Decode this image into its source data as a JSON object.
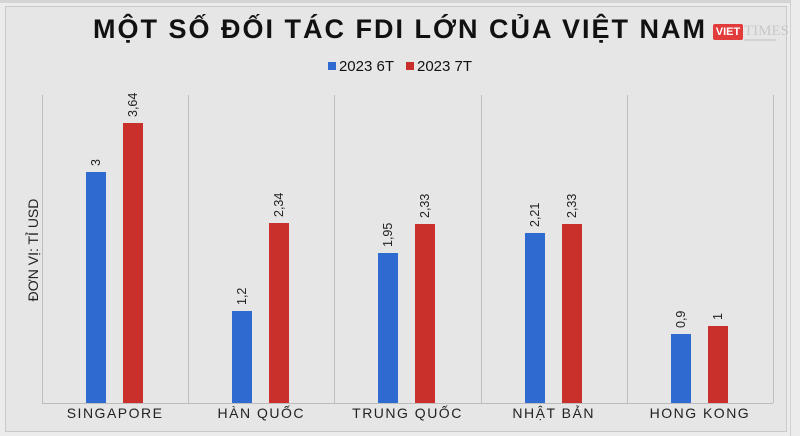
{
  "header": {
    "title": "MỘT SỐ ĐỐI TÁC FDI LỚN CỦA VIỆT NAM",
    "logo_left": "VIET",
    "logo_right": "TIMES"
  },
  "legend": [
    {
      "label": "2023 6T",
      "color": "#2f6ad0"
    },
    {
      "label": "2023 7T",
      "color": "#c9302c"
    }
  ],
  "colors": {
    "series_6t": "#2f6ad0",
    "series_7t": "#c9302c",
    "background": "#e6e6e6",
    "grid": "#bdbdbd"
  },
  "chart_data": {
    "type": "bar",
    "title": "MỘT SỐ ĐỐI TÁC FDI LỚN CỦA VIỆT NAM",
    "xlabel": "",
    "ylabel": "ĐƠN VỊ: TỈ USD",
    "categories": [
      "SINGAPORE",
      "HÀN QUỐC",
      "TRUNG QUỐC",
      "NHẬT BẢN",
      "HONG KONG"
    ],
    "series": [
      {
        "name": "2023 6T",
        "values": [
          3,
          1.2,
          1.95,
          2.21,
          0.9
        ],
        "labels": [
          "3",
          "1,2",
          "1,95",
          "2,21",
          "0,9"
        ]
      },
      {
        "name": "2023 7T",
        "values": [
          3.64,
          2.34,
          2.33,
          2.33,
          1
        ],
        "labels": [
          "3,64",
          "2,34",
          "2,33",
          "2,33",
          "1"
        ]
      }
    ],
    "ylim": [
      0,
      4
    ],
    "grid": false,
    "legend_position": "top",
    "data_labels": "rotated above bars"
  }
}
